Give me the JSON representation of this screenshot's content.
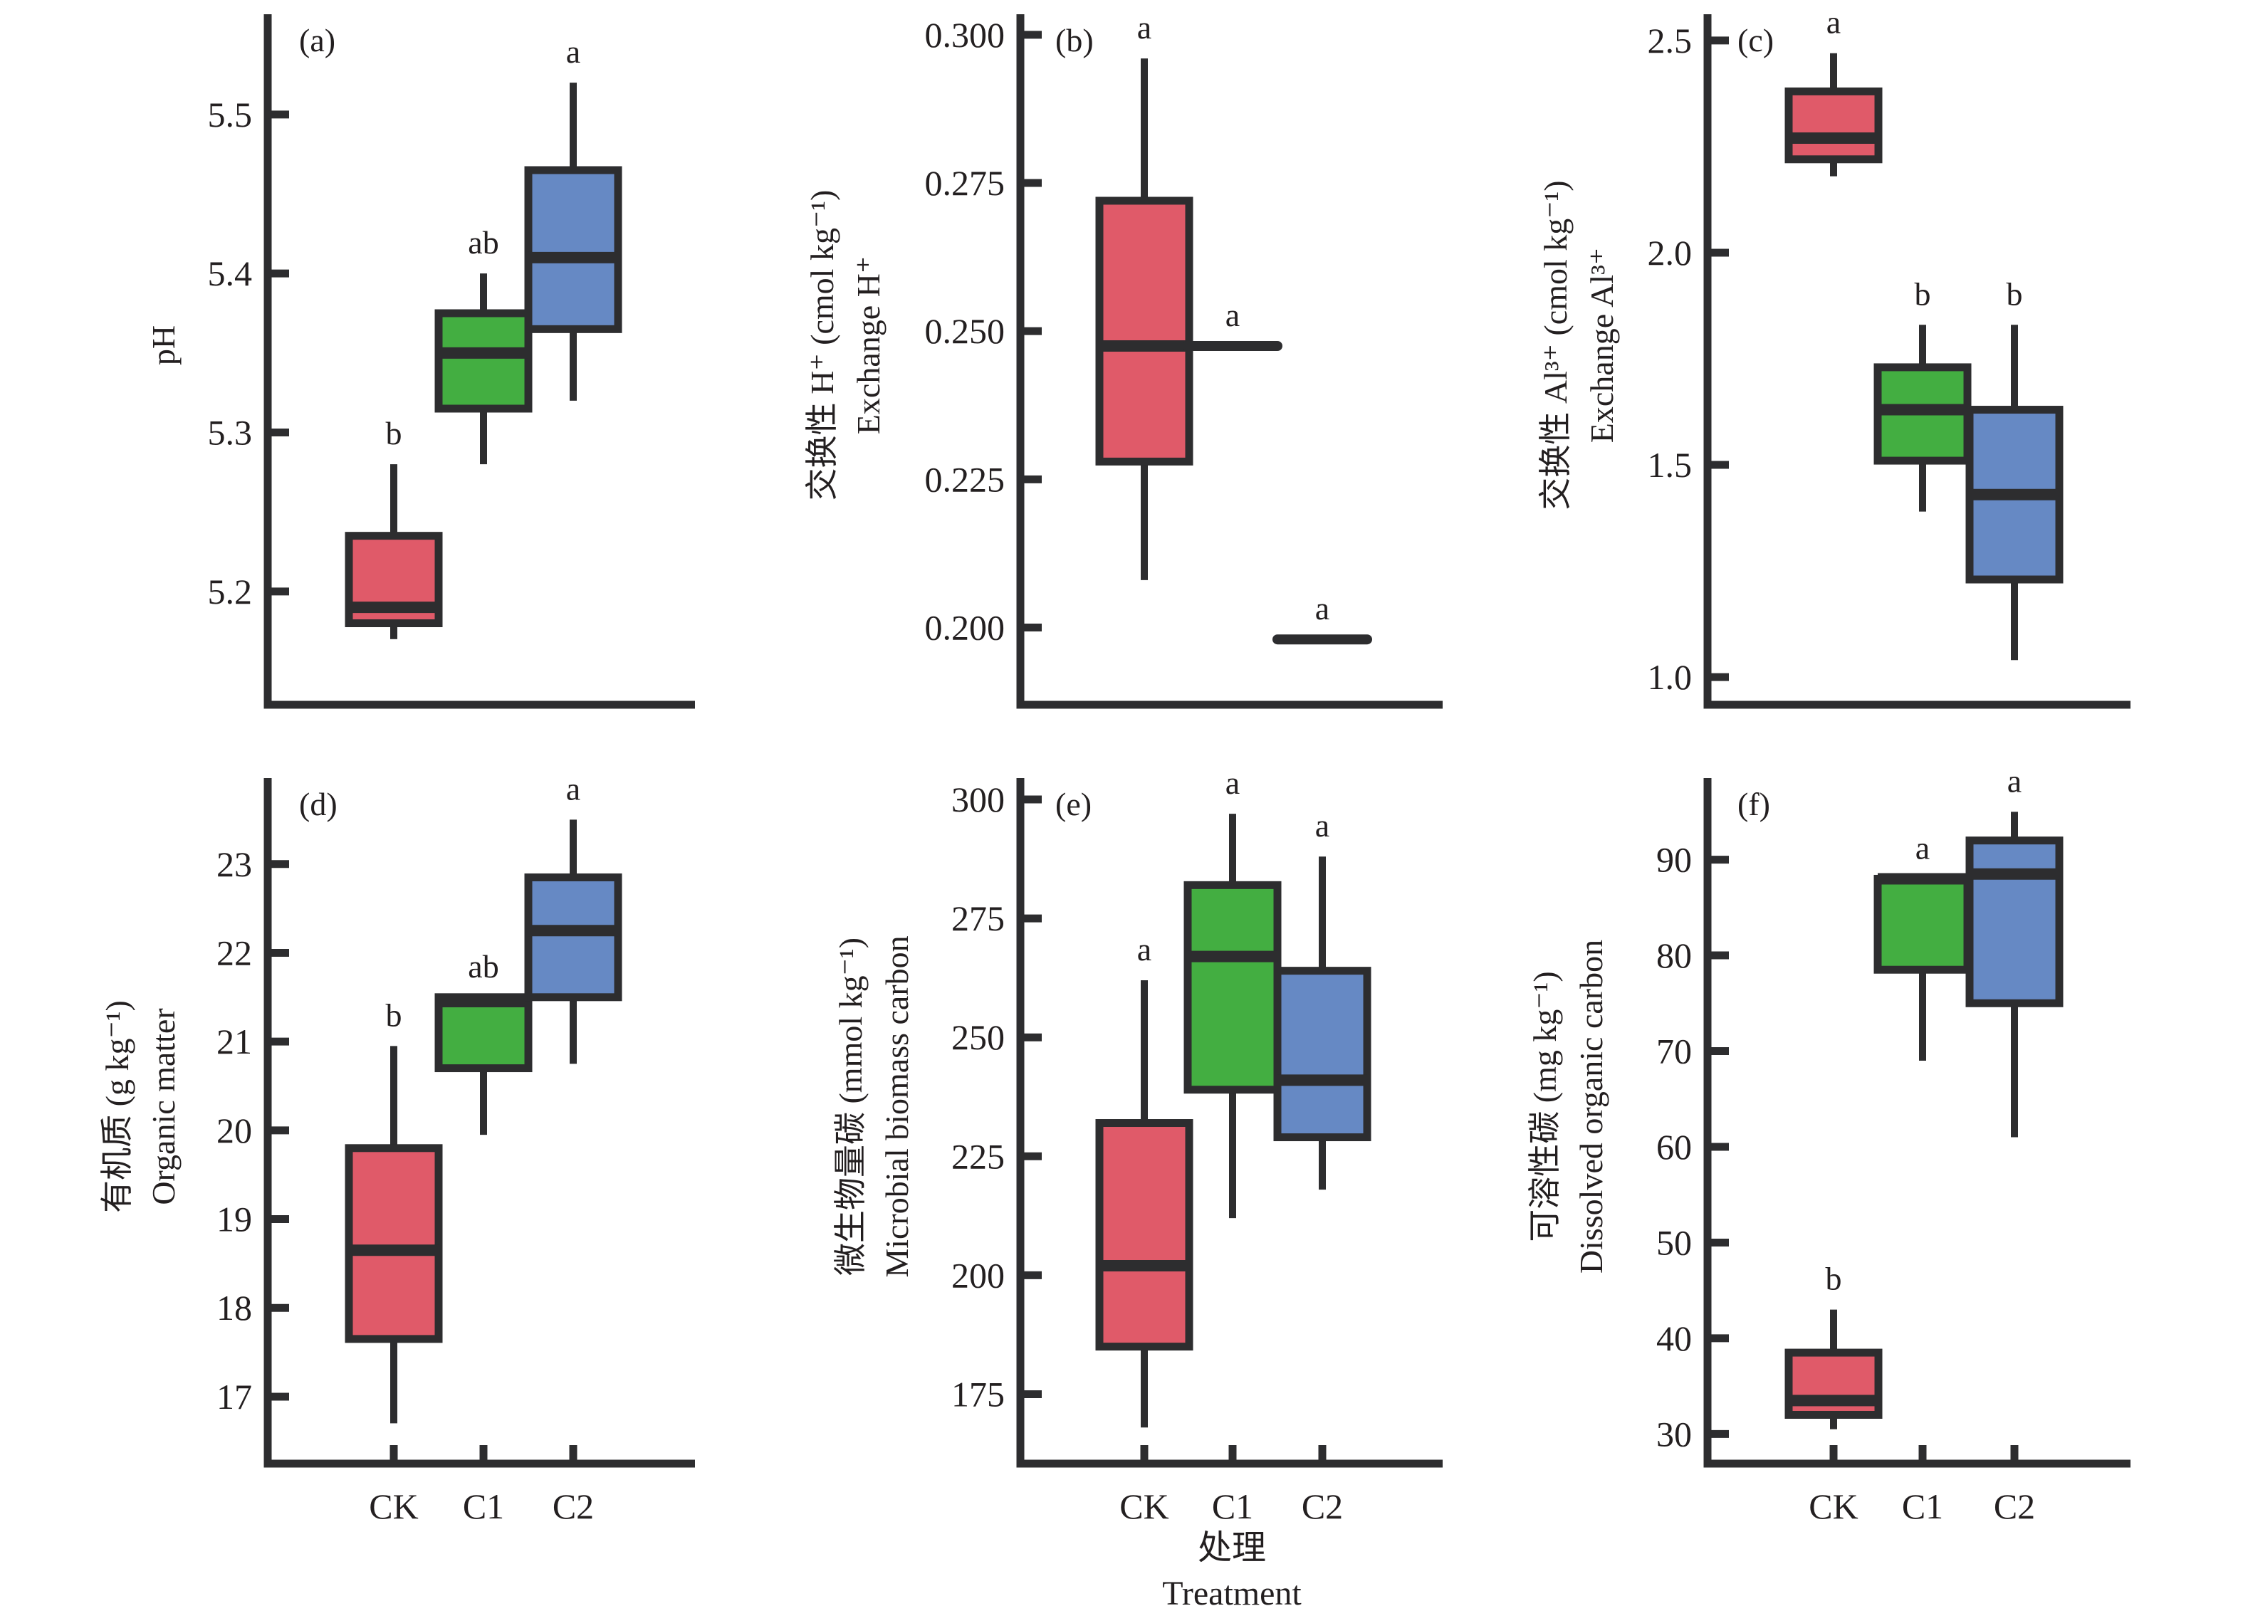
{
  "figure": {
    "x_axis_title_cn": "处理",
    "x_axis_title_en": "Treatment"
  },
  "colors": {
    "CK": "#e05a69",
    "C1": "#43ae41",
    "C2": "#6689c4",
    "stroke": "#2d2d2f"
  },
  "chart_data": [
    {
      "type": "box",
      "panel": "(a)",
      "title": "",
      "ylabel_cn": "",
      "ylabel_en": "pH",
      "categories": [
        "CK",
        "C1",
        "C2"
      ],
      "show_xtick_labels": false,
      "yticks": [
        5.2,
        5.3,
        5.4,
        5.5
      ],
      "ytick_labels": [
        "5.2",
        "5.3",
        "5.4",
        "5.5"
      ],
      "ylim": [
        5.135,
        5.555
      ],
      "grid": false,
      "series": [
        {
          "name": "CK",
          "min": 5.17,
          "q1": 5.18,
          "median": 5.19,
          "q3": 5.235,
          "max": 5.28,
          "sig": "b"
        },
        {
          "name": "C1",
          "min": 5.28,
          "q1": 5.315,
          "median": 5.35,
          "q3": 5.375,
          "max": 5.4,
          "sig": "ab"
        },
        {
          "name": "C2",
          "min": 5.32,
          "q1": 5.365,
          "median": 5.41,
          "q3": 5.465,
          "max": 5.52,
          "sig": "a"
        }
      ]
    },
    {
      "type": "box",
      "panel": "(b)",
      "title": "",
      "ylabel_cn": "交换性 H⁺ (cmol kg⁻¹)",
      "ylabel_en": "Exchange H⁺",
      "categories": [
        "CK",
        "C1",
        "C2"
      ],
      "show_xtick_labels": false,
      "yticks": [
        0.2,
        0.225,
        0.25,
        0.275,
        0.3
      ],
      "ytick_labels": [
        "0.200",
        "0.225",
        "0.250",
        "0.275",
        "0.300"
      ],
      "ylim": [
        0.1925,
        0.3025
      ],
      "grid": false,
      "series": [
        {
          "name": "CK",
          "min": 0.208,
          "q1": 0.228,
          "median": 0.2475,
          "q3": 0.272,
          "max": 0.296,
          "sig": "a"
        },
        {
          "name": "C1",
          "min": 0.2475,
          "q1": 0.2475,
          "median": 0.2475,
          "q3": 0.2475,
          "max": 0.2475,
          "sig": "a"
        },
        {
          "name": "C2",
          "min": 0.198,
          "q1": 0.198,
          "median": 0.198,
          "q3": 0.198,
          "max": 0.198,
          "sig": "a"
        }
      ]
    },
    {
      "type": "box",
      "panel": "(c)",
      "title": "",
      "ylabel_cn": "交换性 Al³⁺ (cmol kg⁻¹)",
      "ylabel_en": "Exchange Al³⁺",
      "categories": [
        "CK",
        "C1",
        "C2"
      ],
      "show_xtick_labels": false,
      "yticks": [
        1.0,
        1.5,
        2.0,
        2.5
      ],
      "ytick_labels": [
        "1.0",
        "1.5",
        "2.0",
        "2.5"
      ],
      "ylim": [
        0.96,
        2.54
      ],
      "grid": false,
      "series": [
        {
          "name": "CK",
          "min": 2.18,
          "q1": 2.22,
          "median": 2.27,
          "q3": 2.38,
          "max": 2.47,
          "sig": "a"
        },
        {
          "name": "C1",
          "min": 1.39,
          "q1": 1.51,
          "median": 1.63,
          "q3": 1.73,
          "max": 1.83,
          "sig": "b"
        },
        {
          "name": "C2",
          "min": 1.04,
          "q1": 1.23,
          "median": 1.43,
          "q3": 1.63,
          "max": 1.83,
          "sig": "b"
        }
      ]
    },
    {
      "type": "box",
      "panel": "(d)",
      "title": "",
      "ylabel_cn": "有机质 (g kg⁻¹)",
      "ylabel_en": "Organic matter",
      "categories": [
        "CK",
        "C1",
        "C2"
      ],
      "show_xtick_labels": true,
      "yticks": [
        17,
        18,
        19,
        20,
        21,
        22,
        23
      ],
      "ytick_labels": [
        "17",
        "18",
        "19",
        "20",
        "21",
        "22",
        "23"
      ],
      "ylim": [
        16.35,
        23.8
      ],
      "grid": false,
      "series": [
        {
          "name": "CK",
          "min": 16.7,
          "q1": 17.65,
          "median": 18.65,
          "q3": 19.8,
          "max": 20.95,
          "sig": "b"
        },
        {
          "name": "C1",
          "min": 19.95,
          "q1": 20.7,
          "median": 21.45,
          "q3": 21.5,
          "max": 21.5,
          "sig": "ab"
        },
        {
          "name": "C2",
          "min": 20.75,
          "q1": 21.5,
          "median": 22.25,
          "q3": 22.85,
          "max": 23.5,
          "sig": "a"
        }
      ]
    },
    {
      "type": "box",
      "panel": "(e)",
      "title": "",
      "ylabel_cn": "微生物量碳 (mmol kg⁻¹)",
      "ylabel_en": "Microbial biomass carbon",
      "categories": [
        "CK",
        "C1",
        "C2"
      ],
      "show_xtick_labels": true,
      "yticks": [
        175,
        200,
        225,
        250,
        275,
        300
      ],
      "ytick_labels": [
        "175",
        "200",
        "225",
        "250",
        "275",
        "300"
      ],
      "ylim": [
        162.5,
        303
      ],
      "grid": false,
      "series": [
        {
          "name": "CK",
          "min": 168,
          "q1": 185,
          "median": 202,
          "q3": 232,
          "max": 262,
          "sig": "a"
        },
        {
          "name": "C1",
          "min": 212,
          "q1": 239,
          "median": 267,
          "q3": 282,
          "max": 297,
          "sig": "a"
        },
        {
          "name": "C2",
          "min": 218,
          "q1": 229,
          "median": 241,
          "q3": 264,
          "max": 288,
          "sig": "a"
        }
      ]
    },
    {
      "type": "box",
      "panel": "(f)",
      "title": "",
      "ylabel_cn": "可溶性碳 (mg kg⁻¹)",
      "ylabel_en": "Dissolved organic carbon",
      "categories": [
        "CK",
        "C1",
        "C2"
      ],
      "show_xtick_labels": true,
      "yticks": [
        30,
        40,
        50,
        60,
        70,
        80,
        90
      ],
      "ytick_labels": [
        "30",
        "40",
        "50",
        "60",
        "70",
        "80",
        "90"
      ],
      "ylim": [
        27.5,
        98
      ],
      "grid": false,
      "series": [
        {
          "name": "CK",
          "min": 30.5,
          "q1": 32,
          "median": 33.5,
          "q3": 38.5,
          "max": 43,
          "sig": "b"
        },
        {
          "name": "C1",
          "min": 69,
          "q1": 78.5,
          "median": 88,
          "q3": 88,
          "max": 88,
          "sig": "a"
        },
        {
          "name": "C2",
          "min": 61,
          "q1": 75,
          "median": 88.5,
          "q3": 92,
          "max": 95,
          "sig": "a"
        }
      ]
    }
  ]
}
